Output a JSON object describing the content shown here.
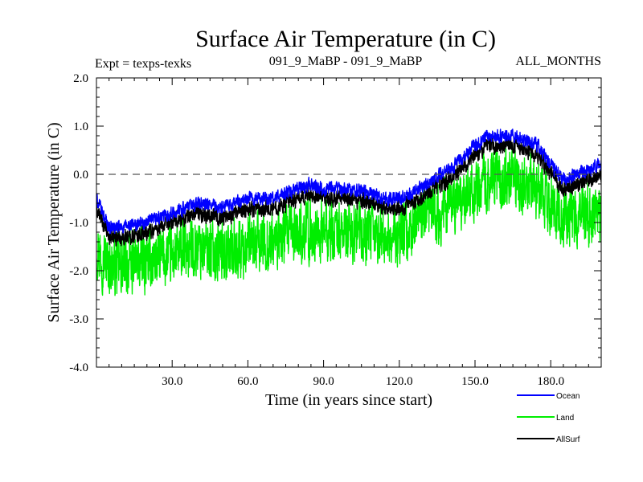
{
  "chart_data": {
    "type": "line",
    "title": "Surface Air Temperature (in C)",
    "subtitle_left": "Expt = texps-texks",
    "subtitle_center": "091_9_MaBP - 091_9_MaBP",
    "subtitle_right": "ALL_MONTHS",
    "xlabel": "Time (in years since start)",
    "ylabel": "Surface Air Temperature (in C)",
    "xlim": [
      0,
      200
    ],
    "ylim": [
      -4.0,
      2.0
    ],
    "x_ticks": [
      30,
      60,
      90,
      120,
      150,
      180
    ],
    "x_tick_labels": [
      "30.0",
      "60.0",
      "90.0",
      "120.0",
      "150.0",
      "180.0"
    ],
    "y_ticks": [
      2.0,
      1.0,
      0.0,
      -1.0,
      -2.0,
      -3.0,
      -4.0
    ],
    "y_tick_labels": [
      "2.0",
      "1.0",
      "0.0",
      "-1.0",
      "-2.0",
      "-3.0",
      "-4.0"
    ],
    "reference_line": 0.0,
    "legend_position": "bottom-right",
    "anchor_years": [
      0,
      5,
      10,
      20,
      30,
      40,
      50,
      60,
      70,
      80,
      85,
      90,
      100,
      110,
      115,
      120,
      125,
      130,
      140,
      150,
      155,
      160,
      165,
      170,
      175,
      180,
      185,
      190,
      195,
      200
    ],
    "series": [
      {
        "name": "Ocean",
        "color": "#0000ff",
        "noise_amplitude": 0.12,
        "values": [
          -0.5,
          -1.1,
          -1.1,
          -1.0,
          -0.8,
          -0.6,
          -0.7,
          -0.5,
          -0.5,
          -0.3,
          -0.2,
          -0.3,
          -0.3,
          -0.4,
          -0.5,
          -0.5,
          -0.4,
          -0.2,
          0.1,
          0.6,
          0.8,
          0.8,
          0.8,
          0.7,
          0.6,
          0.2,
          -0.1,
          0.0,
          0.1,
          0.2
        ]
      },
      {
        "name": "Land",
        "color": "#00ee00",
        "noise_amplitude": 0.55,
        "values": [
          -1.5,
          -1.9,
          -1.9,
          -1.8,
          -1.7,
          -1.5,
          -1.6,
          -1.5,
          -1.4,
          -1.2,
          -1.2,
          -1.2,
          -1.2,
          -1.3,
          -1.3,
          -1.3,
          -1.1,
          -0.9,
          -0.7,
          -0.3,
          -0.1,
          -0.1,
          -0.1,
          -0.2,
          -0.4,
          -0.6,
          -0.9,
          -0.8,
          -0.8,
          -0.7
        ]
      },
      {
        "name": "AllSurf",
        "color": "#000000",
        "noise_amplitude": 0.15,
        "values": [
          -0.7,
          -1.3,
          -1.3,
          -1.2,
          -1.0,
          -0.8,
          -0.9,
          -0.7,
          -0.7,
          -0.5,
          -0.4,
          -0.5,
          -0.5,
          -0.6,
          -0.7,
          -0.7,
          -0.6,
          -0.4,
          -0.1,
          0.4,
          0.6,
          0.6,
          0.6,
          0.5,
          0.4,
          0.0,
          -0.3,
          -0.2,
          -0.1,
          0.0
        ]
      }
    ]
  }
}
